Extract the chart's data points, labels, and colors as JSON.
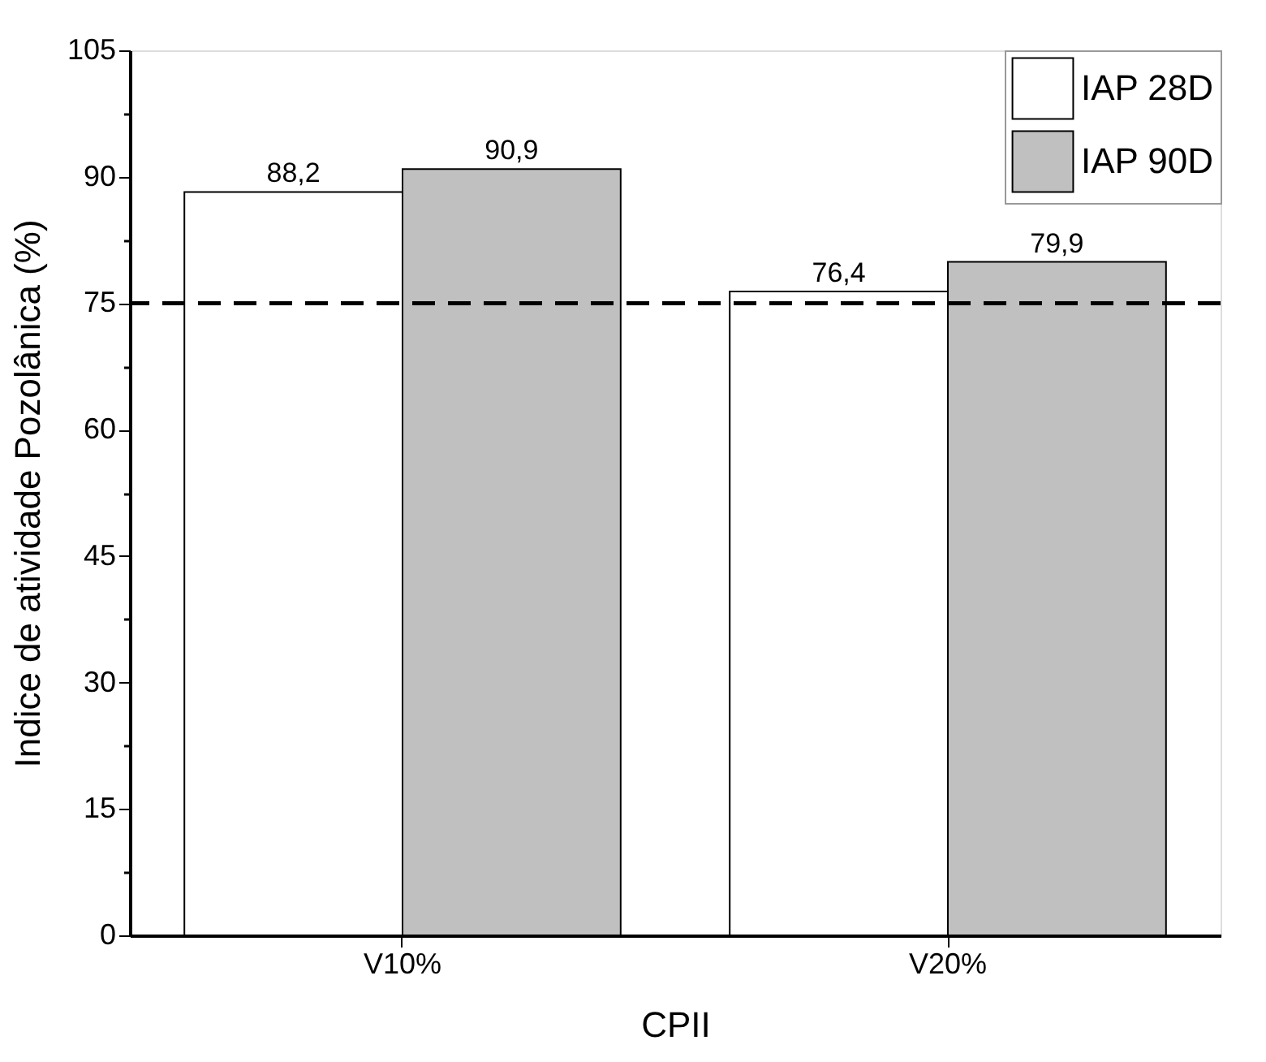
{
  "chart_data": {
    "type": "bar",
    "xlabel": "CPII",
    "ylabel": "Indice de atividade Pozolânica (%)",
    "categories": [
      "V10%",
      "V20%"
    ],
    "series": [
      {
        "name": "IAP 28D",
        "color": "#ffffff",
        "values": [
          88.2,
          76.4
        ],
        "value_labels": [
          "88,2",
          "76,4"
        ]
      },
      {
        "name": "IAP 90D",
        "color": "#c0c0c0",
        "values": [
          90.9,
          79.9
        ],
        "value_labels": [
          "90,9",
          "79,9"
        ]
      }
    ],
    "ylim": [
      0,
      105
    ],
    "yticks": [
      0,
      {
        "value": 7.5,
        "label": null
      },
      15,
      {
        "value": 22.5,
        "label": null
      },
      30,
      {
        "value": 37.5,
        "label": null
      },
      45,
      {
        "value": 52.5,
        "label": null
      },
      60,
      {
        "value": 67.5,
        "label": null
      },
      75,
      {
        "value": 82.5,
        "label": null
      },
      90,
      {
        "value": 97.5,
        "label": null
      },
      105
    ],
    "ref_lines": [
      {
        "axis": "y",
        "value": 75,
        "label": null,
        "color": "#000000",
        "line_style": "dashed"
      }
    ],
    "grid": false,
    "legend": "top right"
  }
}
